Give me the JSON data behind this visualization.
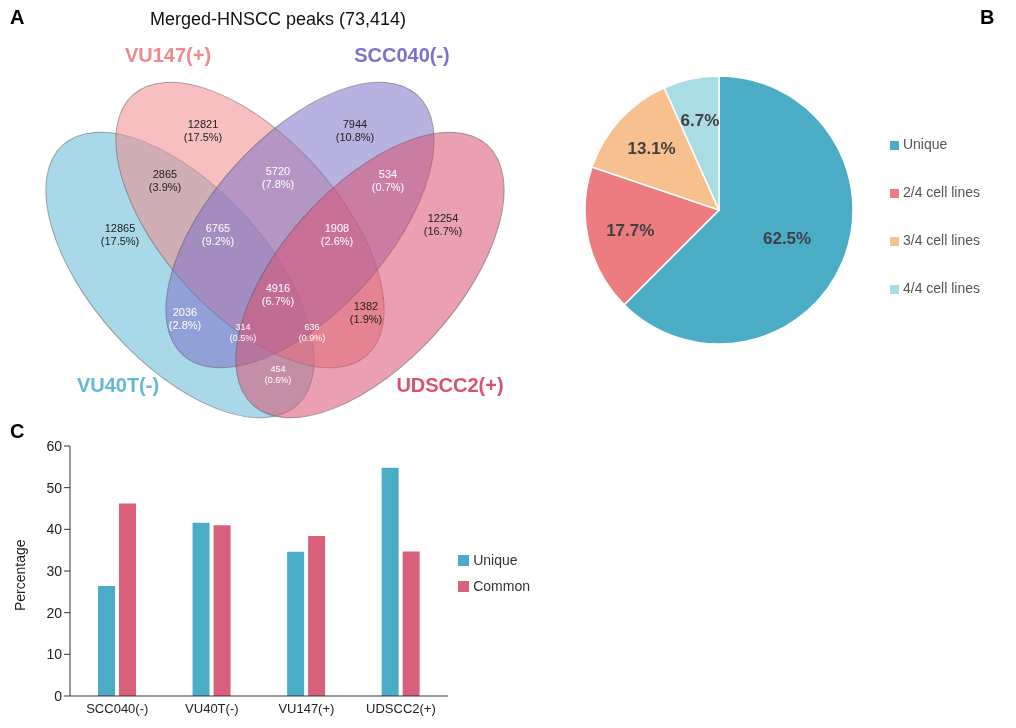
{
  "chart_data": [
    {
      "type": "other",
      "title": "Merged-HNSCC peaks (73,414)",
      "annotations": [
        "A",
        "12821",
        "(17.5%)",
        "7944",
        "(10.8%)",
        "2865",
        "(3.9%)",
        "5720",
        "(7.8%)",
        "534",
        "(0.7%)",
        "12865",
        "(17.5%)",
        "6765",
        "(9.2%)",
        "1908",
        "(2.6%)",
        "12254",
        "(16.7%)",
        "4916",
        "(6.7%)",
        "2036",
        "(2.8%)",
        "1382",
        "(1.9%)",
        "314",
        "(0.5%)",
        "636",
        "(0.9%)",
        "454",
        "(0.6%)"
      ],
      "series": [
        {
          "name": "VU40T(-)",
          "color": "#62b9d6"
        },
        {
          "name": "VU147(+)",
          "color": "#f08a8a"
        },
        {
          "name": "SCC040(-)",
          "color": "#7d72c8"
        },
        {
          "name": "UDSCC2(+)",
          "color": "#d9526f"
        }
      ]
    },
    {
      "type": "pie",
      "annotations": [
        "B"
      ],
      "categories": [
        "Unique",
        "2/4 cell lines",
        "3/4 cell lines",
        "4/4 cell lines"
      ],
      "values": [
        62.5,
        17.7,
        13.1,
        6.7
      ],
      "colors": [
        "#4bacc6",
        "#ec7c80",
        "#f8bf8f",
        "#a9dde3"
      ],
      "value_labels": [
        "62.5%",
        "17.7%",
        "13.1%",
        "6.7%"
      ],
      "legend": "right"
    },
    {
      "type": "bar",
      "annotations": [
        "C"
      ],
      "categories": [
        "SCC040(-)",
        "VU40T(-)",
        "VU147(+)",
        "UDSCC2(+)"
      ],
      "ylabel": "Percentage",
      "series": [
        {
          "name": "Unique",
          "color": "#4bacc6",
          "values": [
            26.4,
            41.6,
            34.6,
            54.8
          ]
        },
        {
          "name": "Common",
          "color": "#d9607a",
          "values": [
            46.2,
            41.0,
            38.4,
            34.7
          ]
        }
      ],
      "ylim": [
        0,
        60
      ],
      "yticks": [
        0,
        10,
        20,
        30,
        40,
        50,
        60
      ],
      "legend": "right"
    }
  ]
}
